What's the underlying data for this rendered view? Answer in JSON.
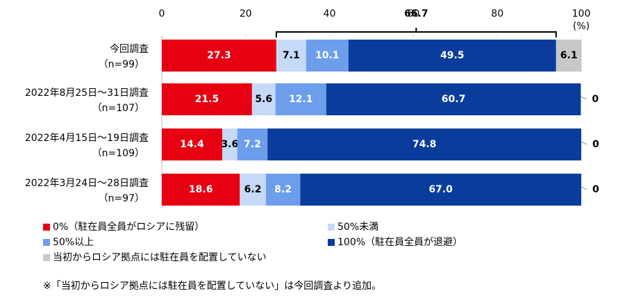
{
  "chart_data": {
    "type": "stacked-bar-horizontal",
    "categories": [
      "今回調査",
      "2022年8月25日～31日調査",
      "2022年4月15日～19日調査",
      "2022年3月24日～28日調査"
    ],
    "sample_sizes": [
      "（n=99）",
      "（n=107）",
      "（n=109）",
      "（n=97）"
    ],
    "series": [
      {
        "name": "0%（駐在員全員がロシアに残留）",
        "color": "#e60012",
        "label_color": "#ffffff",
        "values": [
          27.3,
          21.5,
          14.4,
          18.6
        ]
      },
      {
        "name": "50%未満",
        "color": "#c6d9f7",
        "label_color": "#000000",
        "values": [
          7.1,
          5.6,
          3.6,
          6.2
        ]
      },
      {
        "name": "50%以上",
        "color": "#6d9eeb",
        "label_color": "#ffffff",
        "values": [
          10.1,
          12.1,
          7.2,
          8.2
        ]
      },
      {
        "name": "100%（駐在員全員が退避）",
        "color": "#0a3c9c",
        "label_color": "#ffffff",
        "values": [
          49.5,
          60.7,
          74.8,
          67.0
        ],
        "value_labels": [
          "49.5",
          "60.7",
          "74.8",
          "67.0"
        ]
      },
      {
        "name": "当初からロシア拠点には駐在員を配置していない",
        "color": "#c8c8c8",
        "label_color": "#000000",
        "values": [
          6.1,
          0,
          0,
          0
        ]
      }
    ],
    "xlim": [
      0,
      100
    ],
    "xticks": [
      0,
      20,
      40,
      60,
      80,
      100
    ],
    "x_unit": "(%)",
    "annotation": "66.7",
    "footnote": "※「当初からロシア拠点には駐在員を配置していない」は今回調査より追加。"
  }
}
